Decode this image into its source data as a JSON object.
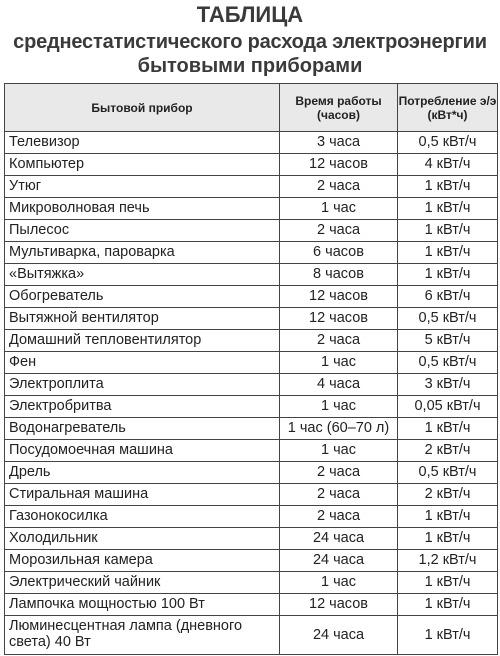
{
  "title": {
    "line1": "ТАБЛИЦА",
    "line2": "среднестатистического расхода электроэнергии",
    "line3": "бытовыми приборами"
  },
  "header": {
    "device": "Бытовой прибор",
    "time": "Время работы (часов)",
    "consumption": "Потребление э/э (кВт*ч)"
  },
  "rows": [
    {
      "device": "Телевизор",
      "time": "3 часа",
      "consumption": "0,5 кВт/ч"
    },
    {
      "device": "Компьютер",
      "time": "12 часов",
      "consumption": "4 кВт/ч"
    },
    {
      "device": "Утюг",
      "time": "2 часа",
      "consumption": "1 кВт/ч"
    },
    {
      "device": "Микроволновая печь",
      "time": "1 час",
      "consumption": "1 кВт/ч"
    },
    {
      "device": "Пылесос",
      "time": "2 часа",
      "consumption": "1 кВт/ч"
    },
    {
      "device": "Мультиварка, пароварка",
      "time": "6 часов",
      "consumption": "1 кВт/ч"
    },
    {
      "device": "«Вытяжка»",
      "time": "8 часов",
      "consumption": "1 кВт/ч"
    },
    {
      "device": "Обогреватель",
      "time": "12 часов",
      "consumption": "6 кВт/ч"
    },
    {
      "device": "Вытяжной вентилятор",
      "time": "12 часов",
      "consumption": "0,5 кВт/ч"
    },
    {
      "device": "Домашний тепловентилятор",
      "time": "2 часа",
      "consumption": "5 кВт/ч"
    },
    {
      "device": "Фен",
      "time": "1 час",
      "consumption": "0,5 кВт/ч"
    },
    {
      "device": "Электроплита",
      "time": "4 часа",
      "consumption": "3 кВт/ч"
    },
    {
      "device": "Электробритва",
      "time": "1 час",
      "consumption": "0,05 кВт/ч"
    },
    {
      "device": "Водонагреватель",
      "time": "1 час (60–70 л)",
      "consumption": "1 кВт/ч"
    },
    {
      "device": "Посудомоечная машина",
      "time": "1 час",
      "consumption": "2 кВт/ч"
    },
    {
      "device": "Дрель",
      "time": "2 часа",
      "consumption": "0,5 кВт/ч"
    },
    {
      "device": "Стиральная машина",
      "time": "2 часа",
      "consumption": "2 кВт/ч"
    },
    {
      "device": "Газонокосилка",
      "time": "2 часа",
      "consumption": "1 кВт/ч"
    },
    {
      "device": "Холодильник",
      "time": "24 часа",
      "consumption": "1 кВт/ч"
    },
    {
      "device": "Морозильная камера",
      "time": "24 часа",
      "consumption": "1,2 кВт/ч"
    },
    {
      "device": "Электрический чайник",
      "time": "1 час",
      "consumption": "1 кВт/ч"
    },
    {
      "device": "Лампочка мощностью 100 Вт",
      "time": "12 часов",
      "consumption": "1 кВт/ч"
    },
    {
      "device": "Люминесцентная лампа (дневного света) 40 Вт",
      "time": "24 часа",
      "consumption": "1 кВт/ч"
    }
  ]
}
